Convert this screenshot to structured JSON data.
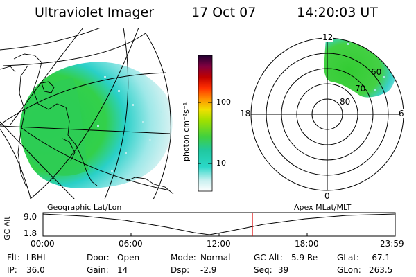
{
  "header": {
    "instrument": "Ultraviolet Imager",
    "date": "17 Oct 07",
    "time": "14:20:03 UT"
  },
  "colorbar": {
    "unit_label": "photon cm⁻²s⁻¹",
    "tick_labels": [
      "100",
      "10"
    ],
    "gradient_colors": [
      "#ffffff",
      "#c8f0f0",
      "#2ad8c8",
      "#20c8a0",
      "#40d040",
      "#a0e000",
      "#f0e000",
      "#ff9000",
      "#ff3000",
      "#c00000",
      "#800040",
      "#200030"
    ]
  },
  "geo_map": {
    "label": "Geographic Lat/Lon",
    "aurora_colors": [
      "#22cc55",
      "#33dd44",
      "#2ad0d0",
      "#9ee8e8",
      "#dcf0f0"
    ]
  },
  "polar_plot": {
    "label": "Apex MLat/MLT",
    "mlt_labels": {
      "top": "12",
      "right": "6",
      "bottom": "0",
      "left": "18"
    },
    "lat_labels": [
      "60",
      "70",
      "80"
    ]
  },
  "altitude_plot": {
    "axis_label": "GC Alt",
    "y_ticks": [
      "9.0",
      "1.8"
    ],
    "x_ticks": [
      "00:00",
      "06:00",
      "12:00",
      "18:00",
      "23:59"
    ],
    "current_time_marker_color": "#dd0000"
  },
  "status": {
    "filter": {
      "label": "Flt:",
      "value": "LBHL"
    },
    "ip": {
      "label": "IP:",
      "value": "36.0"
    },
    "door": {
      "label": "Door:",
      "value": "Open"
    },
    "gain": {
      "label": "Gain:",
      "value": "14"
    },
    "mode": {
      "label": "Mode:",
      "value": "Normal"
    },
    "dsp": {
      "label": "Dsp:",
      "value": "-2.9"
    },
    "gc_alt": {
      "label": "GC Alt:",
      "value": "5.9 Re"
    },
    "seq": {
      "label": "Seq:",
      "value": "39"
    },
    "glat": {
      "label": "GLat:",
      "value": "-67.1"
    },
    "glon": {
      "label": "GLon:",
      "value": "263.5"
    }
  }
}
